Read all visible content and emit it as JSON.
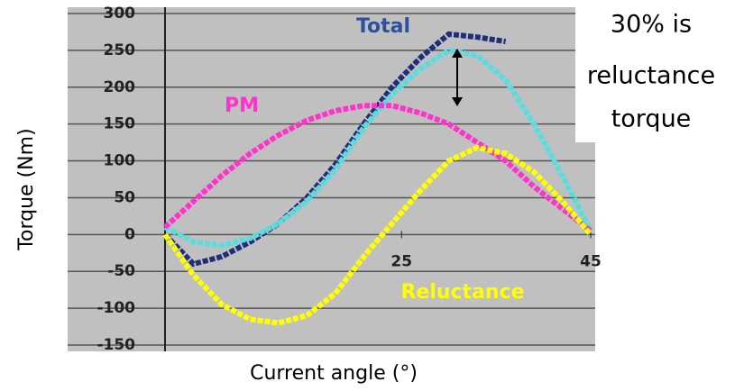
{
  "chart_data": {
    "type": "line",
    "y_label": "Torque (Nm)",
    "x_label": "Current angle (°)",
    "x": [
      0,
      3,
      6,
      9,
      12,
      15,
      18,
      21,
      24,
      27,
      30,
      33,
      36,
      39,
      42,
      45
    ],
    "xlim": [
      0,
      45
    ],
    "xticks": [
      25,
      45
    ],
    "ylim": [
      -150,
      300
    ],
    "yticks": [
      -150,
      -100,
      -50,
      0,
      50,
      100,
      150,
      200,
      250,
      300
    ],
    "grid": true,
    "series": [
      {
        "name": "Total",
        "color": "#1f2f7a",
        "values": [
          0,
          -40,
          -30,
          -10,
          15,
          50,
          95,
          150,
          200,
          240,
          272,
          268,
          262,
          null,
          null,
          null
        ]
      },
      {
        "color": "#55dde0",
        "values": [
          10,
          -10,
          -15,
          -5,
          15,
          45,
          88,
          145,
          190,
          225,
          250,
          243,
          210,
          150,
          80,
          5
        ]
      },
      {
        "name": "PM",
        "color": "#ff33cc",
        "values": [
          10,
          45,
          80,
          110,
          135,
          155,
          168,
          175,
          175,
          165,
          150,
          125,
          100,
          65,
          35,
          5
        ]
      },
      {
        "name": "Reluctance",
        "color": "#ffff00",
        "values": [
          0,
          -55,
          -95,
          -115,
          -120,
          -110,
          -80,
          -30,
          15,
          60,
          100,
          118,
          110,
          85,
          45,
          0
        ]
      }
    ],
    "annotation": [
      "30% is",
      "reluctance",
      "torque"
    ]
  }
}
